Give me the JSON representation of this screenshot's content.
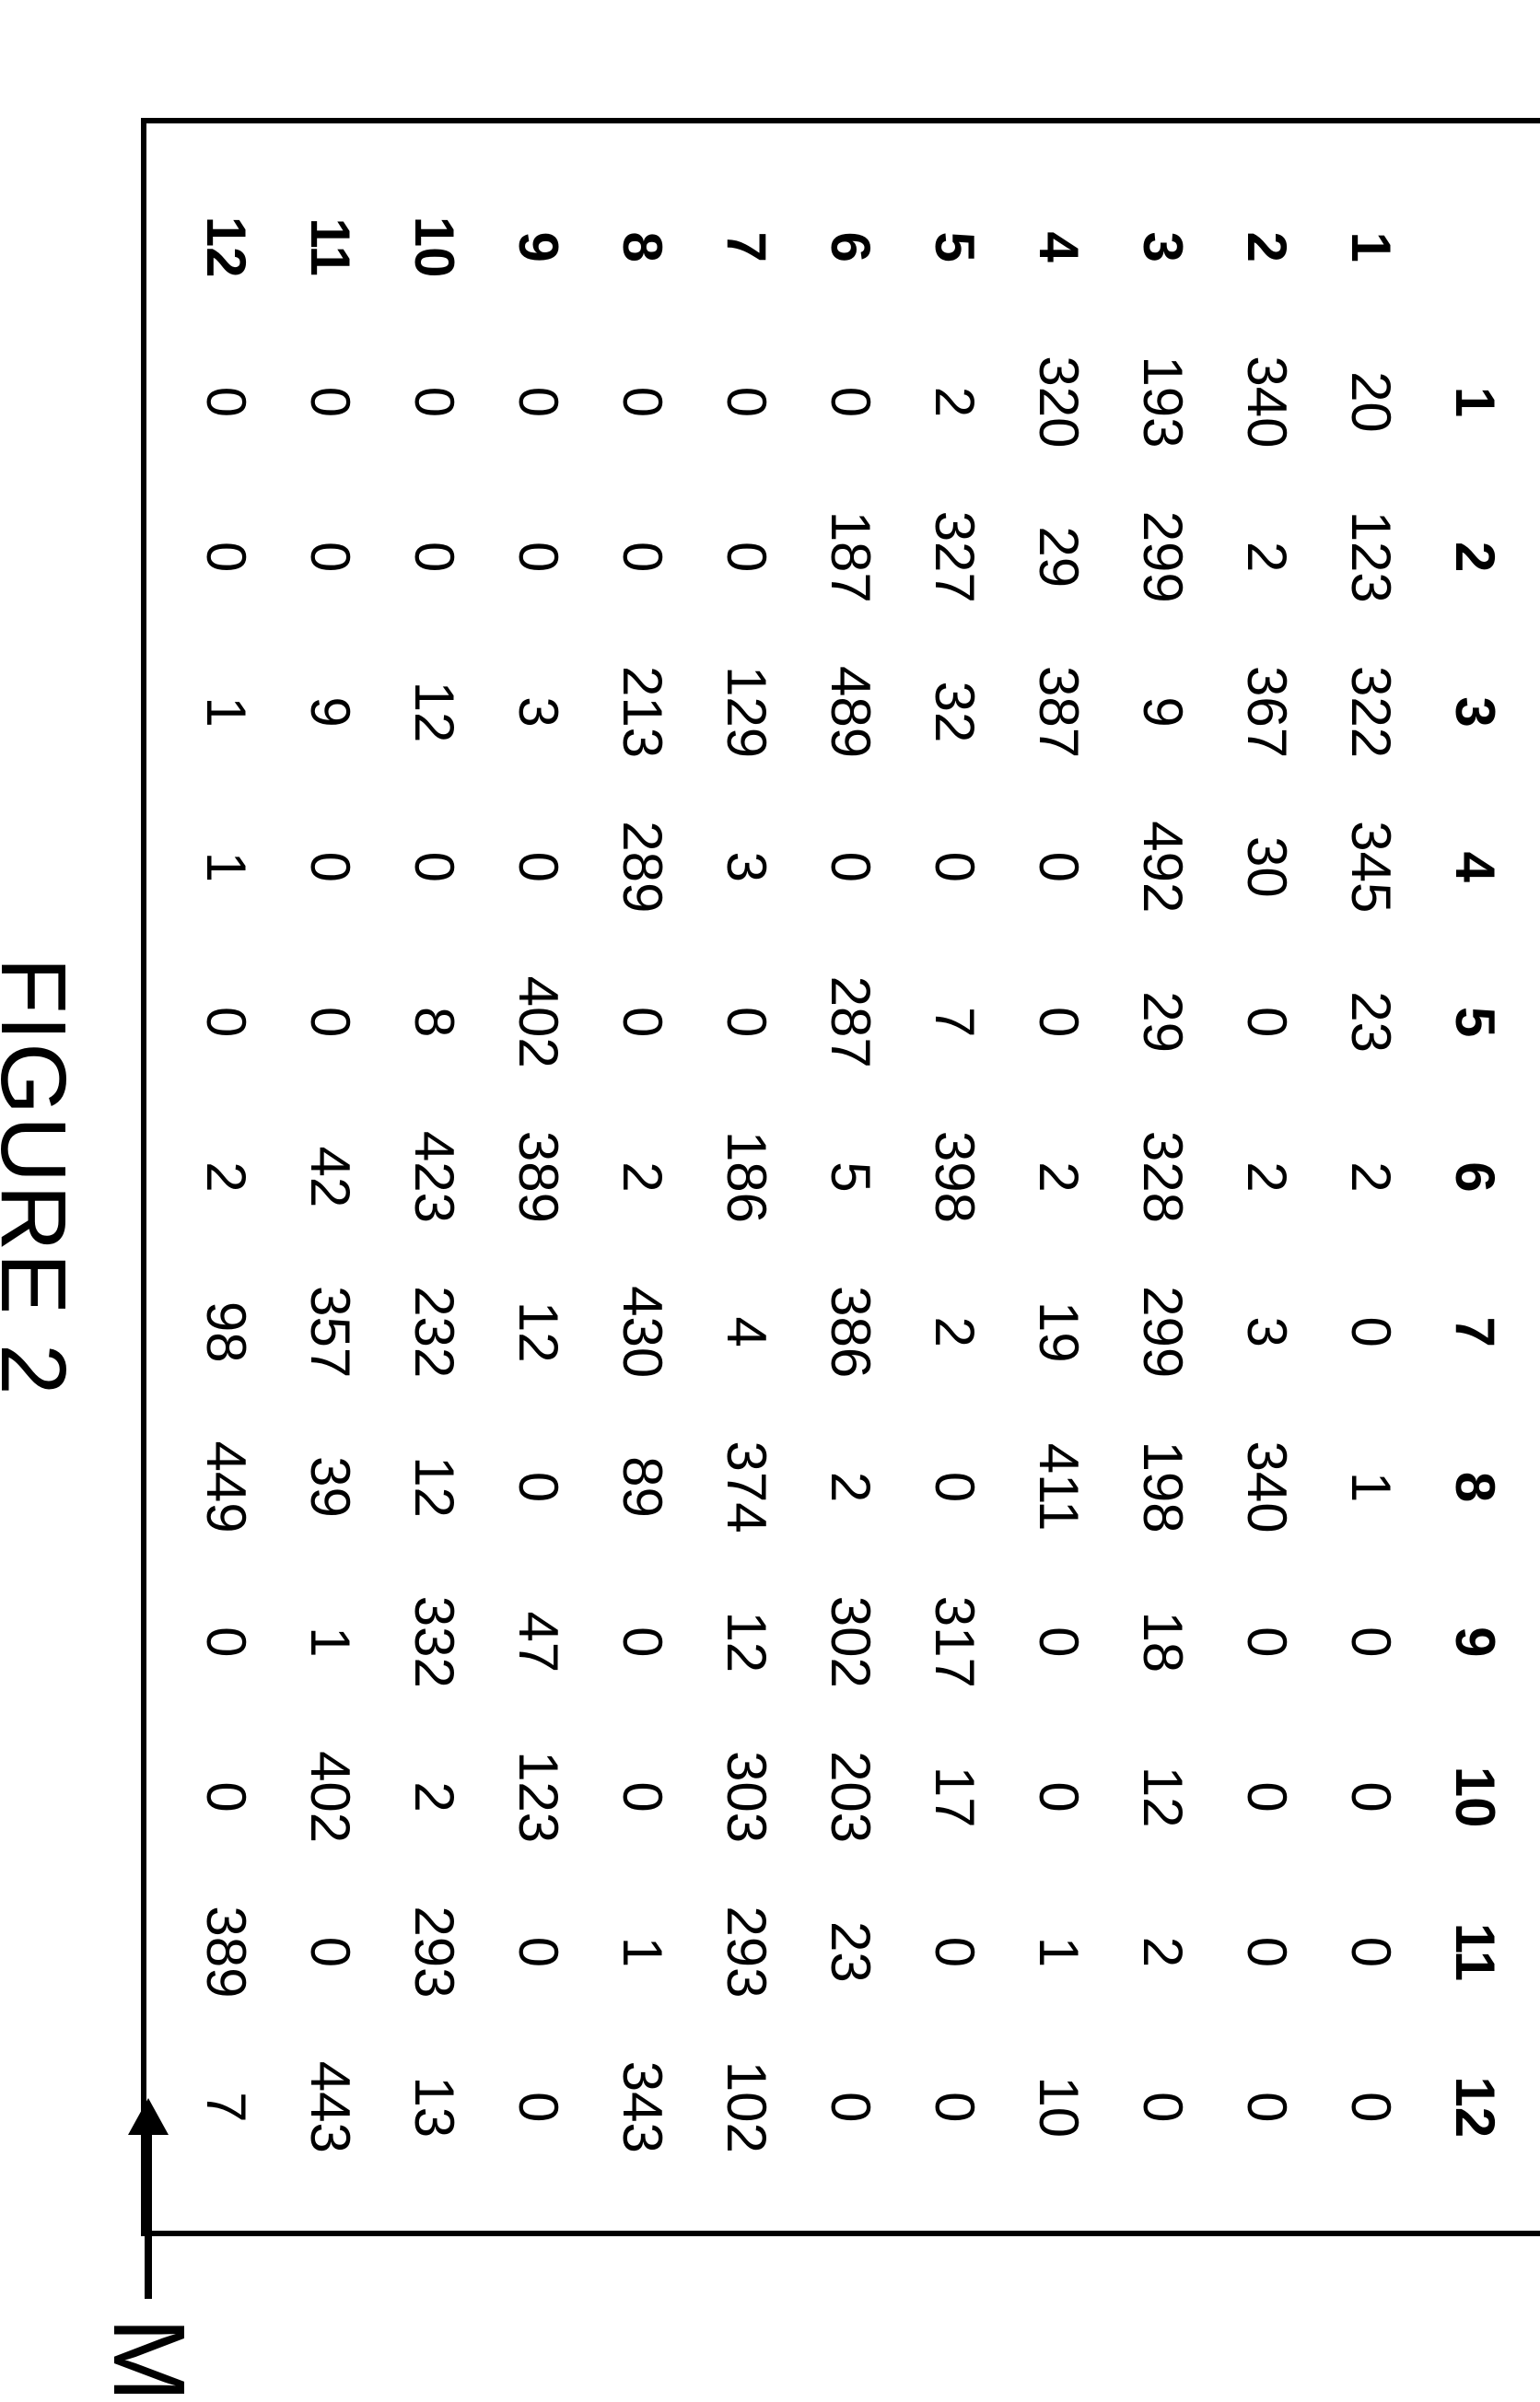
{
  "matrix": {
    "type": "table",
    "label": "M",
    "caption": "FIGURE 2",
    "columns": [
      "1",
      "2",
      "3",
      "4",
      "5",
      "6",
      "7",
      "8",
      "9",
      "10",
      "11",
      "12"
    ],
    "rowHeaders": [
      "1",
      "2",
      "3",
      "4",
      "5",
      "6",
      "7",
      "8",
      "9",
      "10",
      "11",
      "12"
    ],
    "rows": [
      [
        20,
        123,
        322,
        345,
        23,
        2,
        0,
        1,
        0,
        0,
        0,
        0
      ],
      [
        340,
        2,
        367,
        30,
        0,
        2,
        3,
        340,
        0,
        0,
        0,
        0
      ],
      [
        193,
        299,
        9,
        492,
        29,
        328,
        299,
        198,
        18,
        12,
        2,
        0
      ],
      [
        320,
        29,
        387,
        0,
        0,
        2,
        19,
        411,
        0,
        0,
        1,
        10
      ],
      [
        2,
        327,
        32,
        0,
        7,
        398,
        2,
        0,
        317,
        17,
        0,
        0
      ],
      [
        0,
        187,
        489,
        0,
        287,
        5,
        386,
        2,
        302,
        203,
        23,
        0
      ],
      [
        0,
        0,
        129,
        3,
        0,
        186,
        4,
        374,
        12,
        303,
        293,
        102
      ],
      [
        0,
        0,
        213,
        289,
        0,
        2,
        430,
        89,
        0,
        0,
        1,
        343
      ],
      [
        0,
        0,
        3,
        0,
        402,
        389,
        12,
        0,
        47,
        123,
        0,
        0
      ],
      [
        0,
        0,
        12,
        0,
        8,
        423,
        232,
        12,
        332,
        2,
        293,
        13
      ],
      [
        0,
        0,
        9,
        0,
        0,
        42,
        357,
        39,
        1,
        402,
        0,
        443
      ],
      [
        0,
        0,
        1,
        1,
        0,
        2,
        98,
        449,
        0,
        0,
        389,
        7
      ]
    ],
    "border_color": "#000000",
    "background_color": "#ffffff",
    "header_font_weight": "bold",
    "cell_fontsize": 60,
    "caption_fontsize": 100
  }
}
